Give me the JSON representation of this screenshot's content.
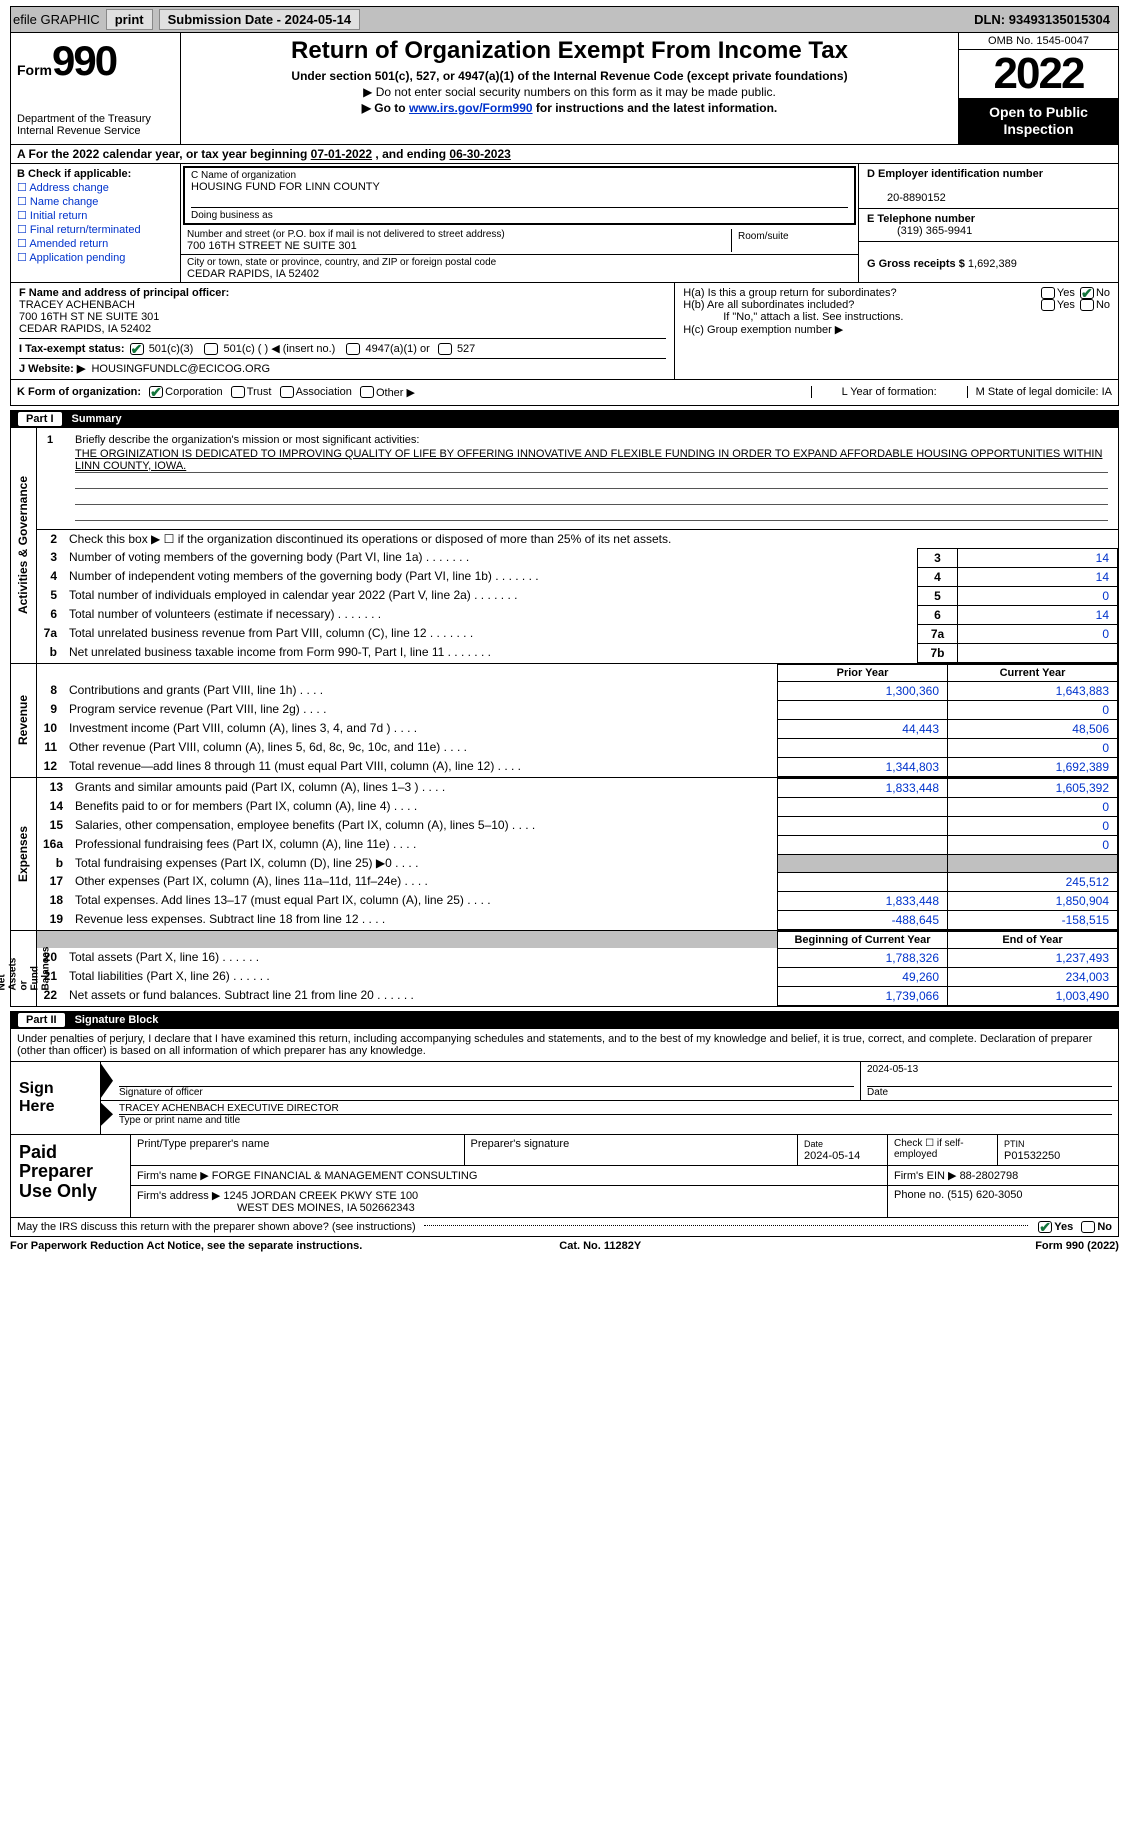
{
  "topbar": {
    "efile": "efile GRAPHIC",
    "print": "print",
    "subdate_lbl": "Submission Date - ",
    "subdate": "2024-05-14",
    "dln_lbl": "DLN: ",
    "dln": "93493135015304"
  },
  "header": {
    "form_word": "Form",
    "form_num": "990",
    "dept": "Department of the Treasury\nInternal Revenue Service",
    "title": "Return of Organization Exempt From Income Tax",
    "sub": "Under section 501(c), 527, or 4947(a)(1) of the Internal Revenue Code (except private foundations)",
    "note1": "▶ Do not enter social security numbers on this form as it may be made public.",
    "note2_pre": "▶ Go to ",
    "note2_link": "www.irs.gov/Form990",
    "note2_post": " for instructions and the latest information.",
    "omb": "OMB No. 1545-0047",
    "year": "2022",
    "openpub": "Open to Public\nInspection"
  },
  "rowA": {
    "text_pre": "A For the 2022 calendar year, or tax year beginning ",
    "begin": "07-01-2022",
    "mid": "   , and ending ",
    "end": "06-30-2023"
  },
  "entity": {
    "b_lbl": "B Check if applicable:",
    "checks": [
      "Address change",
      "Name change",
      "Initial return",
      "Final return/terminated",
      "Amended return",
      "Application pending"
    ],
    "c_name_lbl": "C Name of organization",
    "c_name": "HOUSING FUND FOR LINN COUNTY",
    "dba_lbl": "Doing business as",
    "addr_lbl": "Number and street (or P.O. box if mail is not delivered to street address)",
    "room_lbl": "Room/suite",
    "addr": "700 16TH STREET NE SUITE 301",
    "city_lbl": "City or town, state or province, country, and ZIP or foreign postal code",
    "city": "CEDAR RAPIDS, IA  52402",
    "d_lbl": "D Employer identification number",
    "d_val": "20-8890152",
    "e_lbl": "E Telephone number",
    "e_val": "(319) 365-9941",
    "g_lbl": "G Gross receipts $",
    "g_val": "1,692,389"
  },
  "fh": {
    "f_lbl": "F Name and address of principal officer:",
    "f_name": "TRACEY ACHENBACH",
    "f_addr1": "700 16TH ST NE SUITE 301",
    "f_addr2": "CEDAR RAPIDS, IA  52402",
    "ha": "H(a)  Is this a group return for subordinates?",
    "hb": "H(b)  Are all subordinates included?",
    "hnote": "If \"No,\" attach a list. See instructions.",
    "hc": "H(c)  Group exemption number ▶",
    "yes": "Yes",
    "no": "No"
  },
  "rowI": {
    "lbl": "I     Tax-exempt status:",
    "o1": "501(c)(3)",
    "o2": "501(c) (   ) ◀ (insert no.)",
    "o3": "4947(a)(1) or",
    "o4": "527"
  },
  "rowJ": {
    "lbl": "J    Website: ▶",
    "val": "HOUSINGFUNDLC@ECICOG.ORG"
  },
  "rowK": {
    "lbl": "K Form of organization:",
    "o1": "Corporation",
    "o2": "Trust",
    "o3": "Association",
    "o4": "Other ▶",
    "l_lbl": "L Year of formation:",
    "m_lbl": "M State of legal domicile: IA"
  },
  "part1": {
    "num": "Part I",
    "title": "Summary"
  },
  "summary": {
    "q1": "Briefly describe the organization's mission or most significant activities:",
    "mission": "THE ORGINIZATION IS DEDICATED TO IMPROVING QUALITY OF LIFE BY OFFERING INNOVATIVE AND FLEXIBLE FUNDING IN ORDER TO EXPAND AFFORDABLE HOUSING OPPORTUNITIES WITHIN LINN COUNTY, IOWA.",
    "q2": "Check this box ▶ ☐ if the organization discontinued its operations or disposed of more than 25% of its net assets.",
    "sideA": "Activities & Governance",
    "sideR": "Revenue",
    "sideE": "Expenses",
    "sideN": "Net Assets or\nFund Balances",
    "lines_ag": [
      {
        "n": "3",
        "t": "Number of voting members of the governing body (Part VI, line 1a)",
        "box": "3",
        "v": "14"
      },
      {
        "n": "4",
        "t": "Number of independent voting members of the governing body (Part VI, line 1b)",
        "box": "4",
        "v": "14"
      },
      {
        "n": "5",
        "t": "Total number of individuals employed in calendar year 2022 (Part V, line 2a)",
        "box": "5",
        "v": "0"
      },
      {
        "n": "6",
        "t": "Total number of volunteers (estimate if necessary)",
        "box": "6",
        "v": "14"
      },
      {
        "n": "7a",
        "t": "Total unrelated business revenue from Part VIII, column (C), line 12",
        "box": "7a",
        "v": "0"
      },
      {
        "n": "b",
        "t": "Net unrelated business taxable income from Form 990-T, Part I, line 11",
        "box": "7b",
        "v": ""
      }
    ],
    "col_py": "Prior Year",
    "col_cy": "Current Year",
    "lines_rev": [
      {
        "n": "8",
        "t": "Contributions and grants (Part VIII, line 1h)",
        "py": "1,300,360",
        "cy": "1,643,883"
      },
      {
        "n": "9",
        "t": "Program service revenue (Part VIII, line 2g)",
        "py": "",
        "cy": "0"
      },
      {
        "n": "10",
        "t": "Investment income (Part VIII, column (A), lines 3, 4, and 7d )",
        "py": "44,443",
        "cy": "48,506"
      },
      {
        "n": "11",
        "t": "Other revenue (Part VIII, column (A), lines 5, 6d, 8c, 9c, 10c, and 11e)",
        "py": "",
        "cy": "0"
      },
      {
        "n": "12",
        "t": "Total revenue—add lines 8 through 11 (must equal Part VIII, column (A), line 12)",
        "py": "1,344,803",
        "cy": "1,692,389"
      }
    ],
    "lines_exp": [
      {
        "n": "13",
        "t": "Grants and similar amounts paid (Part IX, column (A), lines 1–3 )",
        "py": "1,833,448",
        "cy": "1,605,392"
      },
      {
        "n": "14",
        "t": "Benefits paid to or for members (Part IX, column (A), line 4)",
        "py": "",
        "cy": "0"
      },
      {
        "n": "15",
        "t": "Salaries, other compensation, employee benefits (Part IX, column (A), lines 5–10)",
        "py": "",
        "cy": "0"
      },
      {
        "n": "16a",
        "t": "Professional fundraising fees (Part IX, column (A), line 11e)",
        "py": "",
        "cy": "0"
      },
      {
        "n": "b",
        "t": "Total fundraising expenses (Part IX, column (D), line 25) ▶0",
        "py": "GREY",
        "cy": "GREY"
      },
      {
        "n": "17",
        "t": "Other expenses (Part IX, column (A), lines 11a–11d, 11f–24e)",
        "py": "",
        "cy": "245,512"
      },
      {
        "n": "18",
        "t": "Total expenses. Add lines 13–17 (must equal Part IX, column (A), line 25)",
        "py": "1,833,448",
        "cy": "1,850,904"
      },
      {
        "n": "19",
        "t": "Revenue less expenses. Subtract line 18 from line 12",
        "py": "-488,645",
        "cy": "-158,515"
      }
    ],
    "col_boy": "Beginning of Current Year",
    "col_eoy": "End of Year",
    "lines_net": [
      {
        "n": "20",
        "t": "Total assets (Part X, line 16)",
        "py": "1,788,326",
        "cy": "1,237,493"
      },
      {
        "n": "21",
        "t": "Total liabilities (Part X, line 26)",
        "py": "49,260",
        "cy": "234,003"
      },
      {
        "n": "22",
        "t": "Net assets or fund balances. Subtract line 21 from line 20",
        "py": "1,739,066",
        "cy": "1,003,490"
      }
    ]
  },
  "part2": {
    "num": "Part II",
    "title": "Signature Block"
  },
  "sig": {
    "intro": "Under penalties of perjury, I declare that I have examined this return, including accompanying schedules and statements, and to the best of my knowledge and belief, it is true, correct, and complete. Declaration of preparer (other than officer) is based on all information of which preparer has any knowledge.",
    "sign_here": "Sign\nHere",
    "sig_officer": "Signature of officer",
    "date_lbl": "Date",
    "date": "2024-05-13",
    "name": "TRACEY ACHENBACH  EXECUTIVE DIRECTOR",
    "name_lbl": "Type or print name and title"
  },
  "prep": {
    "lbl": "Paid\nPreparer\nUse Only",
    "r1_c1": "Print/Type preparer's name",
    "r1_c2": "Preparer's signature",
    "r1_c3_lbl": "Date",
    "r1_c3": "2024-05-14",
    "r1_c4": "Check ☐ if self-employed",
    "r1_c5_lbl": "PTIN",
    "r1_c5": "P01532250",
    "r2_lbl": "Firm's name     ▶",
    "r2_val": "FORGE FINANCIAL & MANAGEMENT CONSULTING",
    "r2_ein_lbl": "Firm's EIN ▶",
    "r2_ein": "88-2802798",
    "r3_lbl": "Firm's address ▶",
    "r3_val1": "1245 JORDAN CREEK PKWY STE 100",
    "r3_val2": "WEST DES MOINES, IA  502662343",
    "r3_ph_lbl": "Phone no.",
    "r3_ph": "(515) 620-3050"
  },
  "footer": {
    "q": "May the IRS discuss this return with the preparer shown above? (see instructions)",
    "yes": "Yes",
    "no": "No",
    "pra": "For Paperwork Reduction Act Notice, see the separate instructions.",
    "cat": "Cat. No. 11282Y",
    "form": "Form 990 (2022)"
  }
}
